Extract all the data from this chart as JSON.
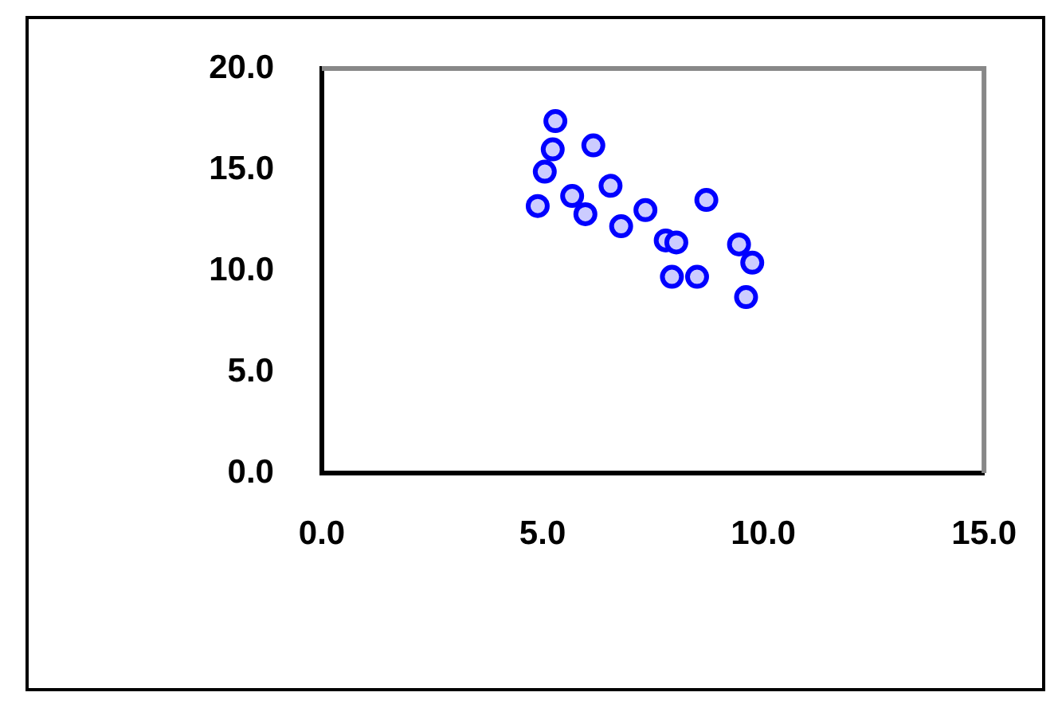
{
  "chart_data": {
    "type": "scatter",
    "marker": "circle",
    "grid": false,
    "legend": false,
    "xlim": [
      0,
      15
    ],
    "ylim": [
      0,
      20
    ],
    "xticks": [
      {
        "value": 0,
        "label": "0.0"
      },
      {
        "value": 5,
        "label": "5.0"
      },
      {
        "value": 10,
        "label": "10.0"
      },
      {
        "value": 15,
        "label": "15.0"
      }
    ],
    "yticks": [
      {
        "value": 0,
        "label": "0.0"
      },
      {
        "value": 5,
        "label": "5.0"
      },
      {
        "value": 10,
        "label": "10.0"
      },
      {
        "value": 15,
        "label": "15.0"
      },
      {
        "value": 20,
        "label": "20.0"
      }
    ],
    "series": [
      {
        "color": "#0000ff",
        "x": [
          5.29,
          5.23,
          6.15,
          5.05,
          4.89,
          5.67,
          5.97,
          6.54,
          6.78,
          7.33,
          8.71,
          7.79,
          8.03,
          9.45,
          9.75,
          7.93,
          8.5,
          9.61
        ],
        "values": [
          17.4,
          16.0,
          16.2,
          14.9,
          13.2,
          13.7,
          12.8,
          14.2,
          12.2,
          13.0,
          13.5,
          11.5,
          11.4,
          11.3,
          10.4,
          9.7,
          9.7,
          8.7
        ]
      }
    ]
  }
}
